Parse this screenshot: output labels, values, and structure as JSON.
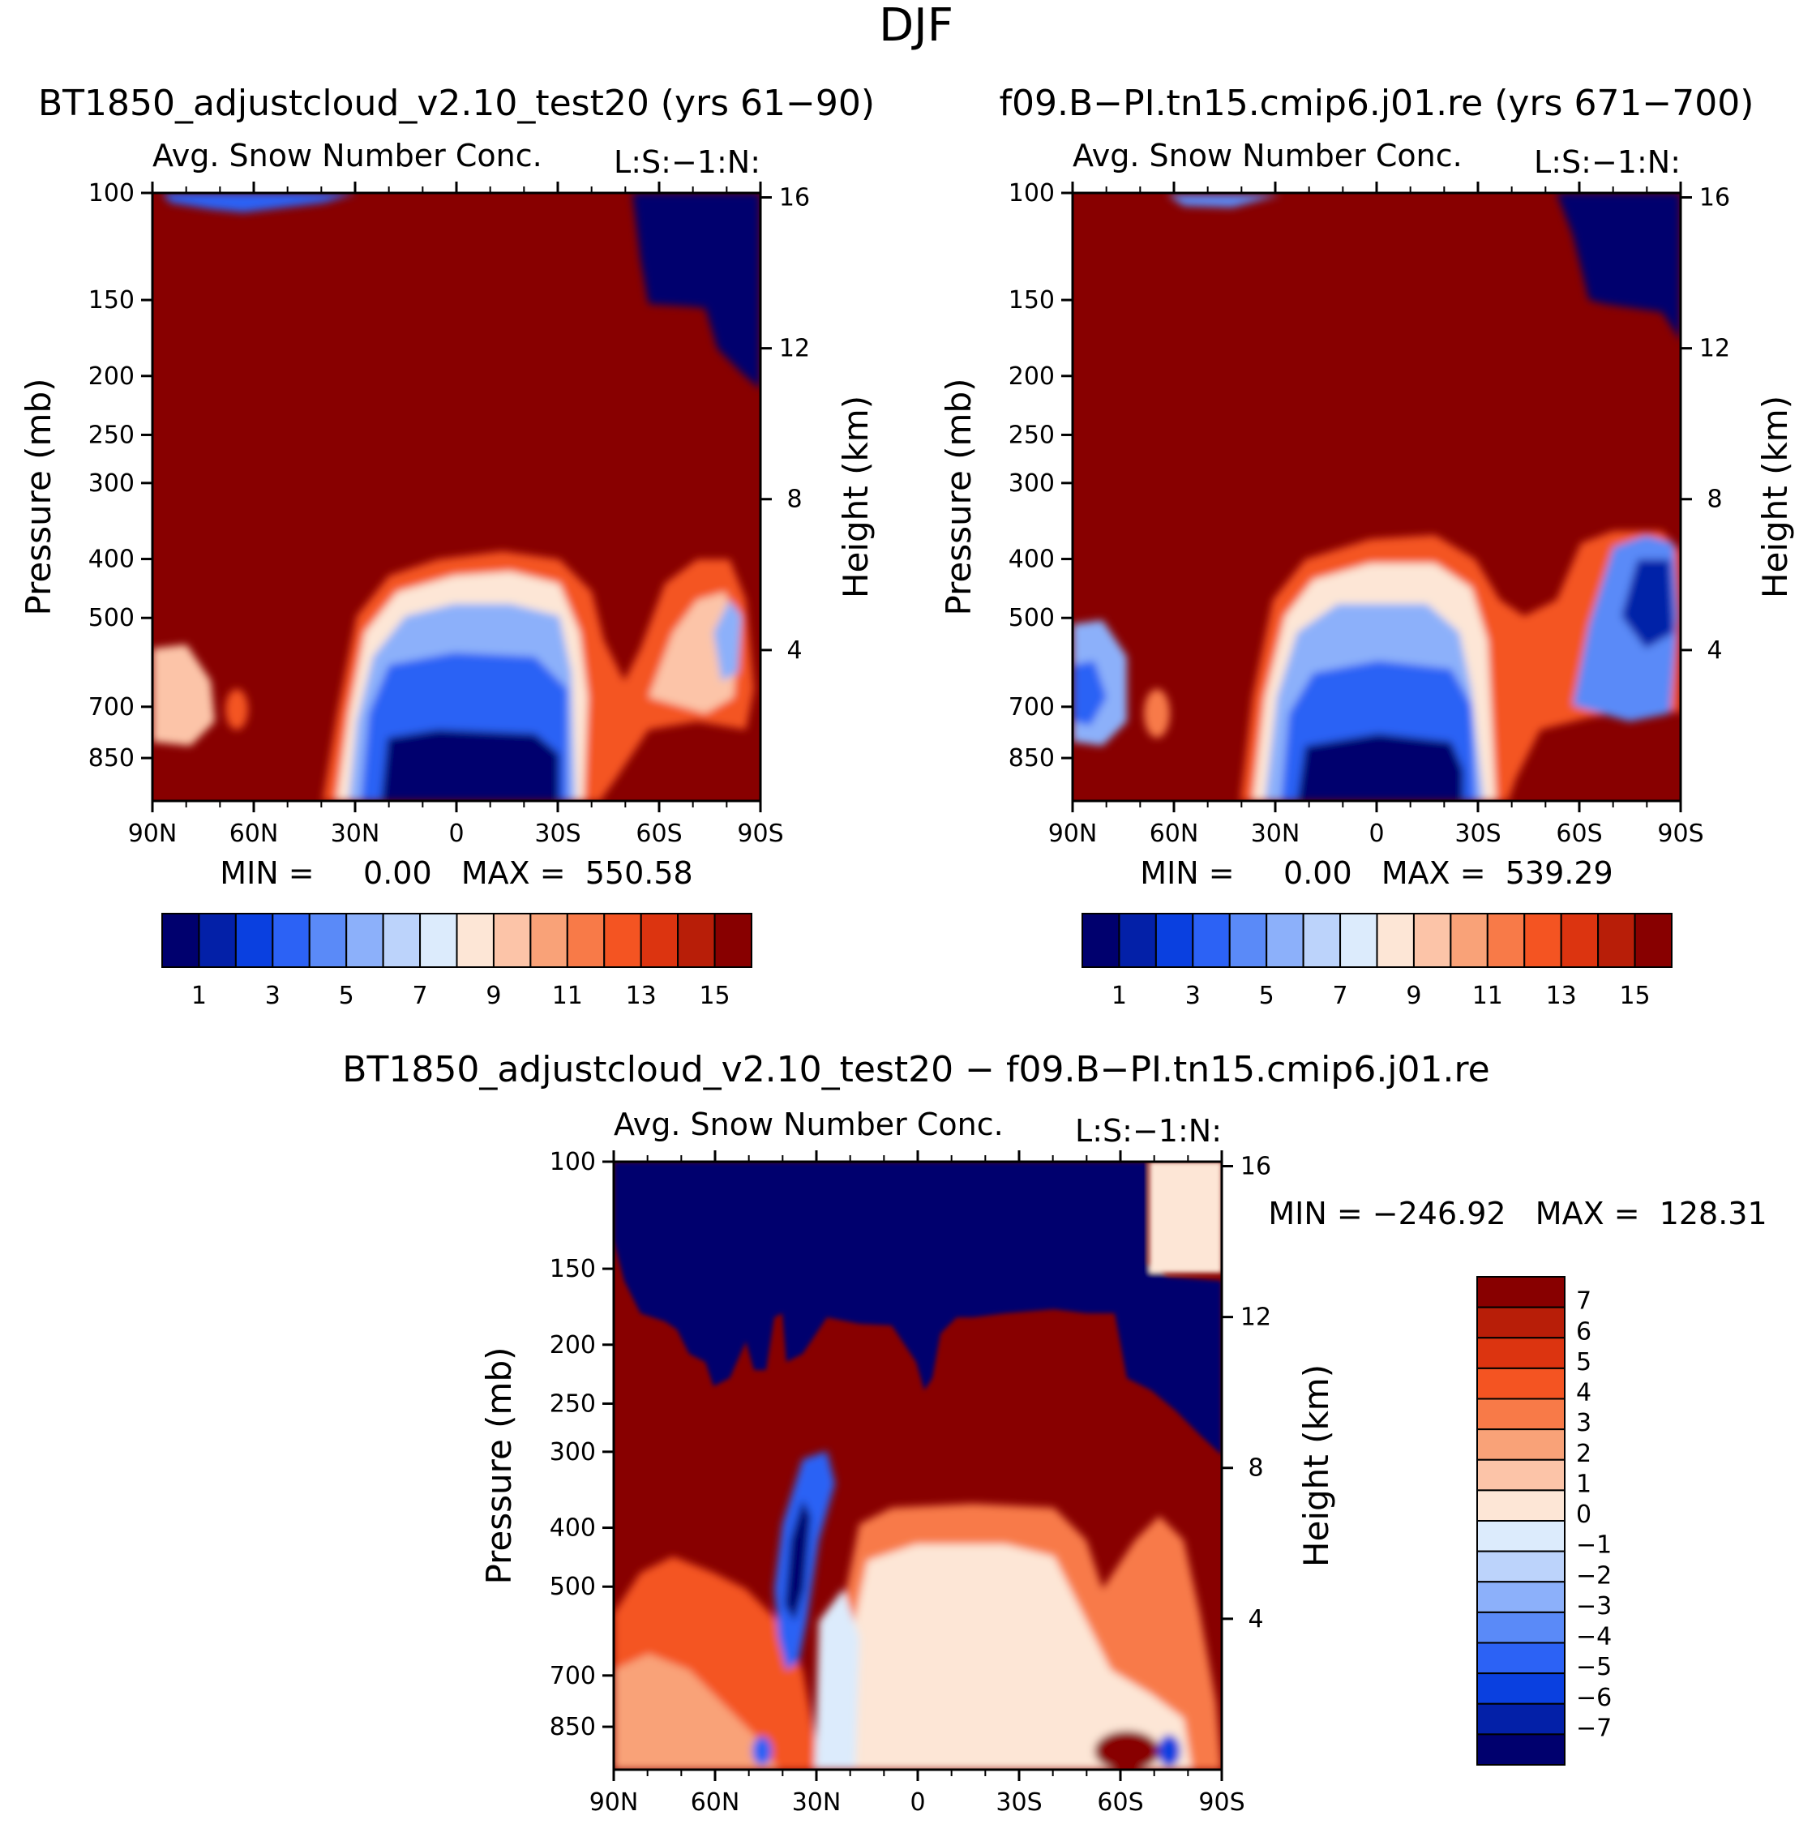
{
  "figure_title": "DJF",
  "chart_data": [
    {
      "type": "heatmap",
      "title": "BT1850_adjustcloud_v2.10_test20 (yrs 61−90)",
      "left_string": "Avg. Snow Number Conc.",
      "right_string": "L:S:−1:N:",
      "xlabel": "",
      "ylabel": "Pressure (mb)",
      "y2label": "Height (km)",
      "x_tick_labels": [
        "90N",
        "60N",
        "30N",
        "0",
        "30S",
        "60S",
        "90S"
      ],
      "x_tick_values": [
        90,
        60,
        30,
        0,
        -30,
        -60,
        -90
      ],
      "y_tick_labels": [
        "100",
        "150",
        "200",
        "250",
        "300",
        "400",
        "500",
        "700",
        "850"
      ],
      "y_tick_values": [
        100,
        150,
        200,
        250,
        300,
        400,
        500,
        700,
        850
      ],
      "y2_tick_labels": [
        "16",
        "12",
        "8",
        "4"
      ],
      "y2_tick_values": [
        16,
        12,
        8,
        4
      ],
      "ylim": [
        100,
        1000
      ],
      "xlim": [
        90,
        -90
      ],
      "stats_text": "MIN =     0.00   MAX =  550.58",
      "min": 0.0,
      "max": 550.58,
      "colorbar_labels": [
        "1",
        "3",
        "5",
        "7",
        "9",
        "11",
        "13",
        "15"
      ],
      "colorbar_colors": [
        "#00006e",
        "#0320a8",
        "#0a40e0",
        "#2c62f5",
        "#5a8af8",
        "#8cb0fa",
        "#bcd3fb",
        "#dcebfc",
        "#fde6d6",
        "#fcc4a8",
        "#f9a278",
        "#f87a48",
        "#f45422",
        "#dc3410",
        "#b81e08",
        "#880000"
      ]
    },
    {
      "type": "heatmap",
      "title": "f09.B−PI.tn15.cmip6.j01.re (yrs 671−700)",
      "left_string": "Avg. Snow Number Conc.",
      "right_string": "L:S:−1:N:",
      "xlabel": "",
      "ylabel": "Pressure (mb)",
      "y2label": "Height (km)",
      "x_tick_labels": [
        "90N",
        "60N",
        "30N",
        "0",
        "30S",
        "60S",
        "90S"
      ],
      "x_tick_values": [
        90,
        60,
        30,
        0,
        -30,
        -60,
        -90
      ],
      "y_tick_labels": [
        "100",
        "150",
        "200",
        "250",
        "300",
        "400",
        "500",
        "700",
        "850"
      ],
      "y_tick_values": [
        100,
        150,
        200,
        250,
        300,
        400,
        500,
        700,
        850
      ],
      "y2_tick_labels": [
        "16",
        "12",
        "8",
        "4"
      ],
      "y2_tick_values": [
        16,
        12,
        8,
        4
      ],
      "ylim": [
        100,
        1000
      ],
      "xlim": [
        90,
        -90
      ],
      "stats_text": "MIN =     0.00   MAX =  539.29",
      "min": 0.0,
      "max": 539.29,
      "colorbar_labels": [
        "1",
        "3",
        "5",
        "7",
        "9",
        "11",
        "13",
        "15"
      ],
      "colorbar_colors": [
        "#00006e",
        "#0320a8",
        "#0a40e0",
        "#2c62f5",
        "#5a8af8",
        "#8cb0fa",
        "#bcd3fb",
        "#dcebfc",
        "#fde6d6",
        "#fcc4a8",
        "#f9a278",
        "#f87a48",
        "#f45422",
        "#dc3410",
        "#b81e08",
        "#880000"
      ]
    },
    {
      "type": "heatmap",
      "title": "BT1850_adjustcloud_v2.10_test20 − f09.B−PI.tn15.cmip6.j01.re",
      "left_string": "Avg. Snow Number Conc.",
      "right_string": "L:S:−1:N:",
      "xlabel": "",
      "ylabel": "Pressure (mb)",
      "y2label": "Height (km)",
      "x_tick_labels": [
        "90N",
        "60N",
        "30N",
        "0",
        "30S",
        "60S",
        "90S"
      ],
      "x_tick_values": [
        90,
        60,
        30,
        0,
        -30,
        -60,
        -90
      ],
      "y_tick_labels": [
        "100",
        "150",
        "200",
        "250",
        "300",
        "400",
        "500",
        "700",
        "850"
      ],
      "y_tick_values": [
        100,
        150,
        200,
        250,
        300,
        400,
        500,
        700,
        850
      ],
      "y2_tick_labels": [
        "16",
        "12",
        "8",
        "4"
      ],
      "y2_tick_values": [
        16,
        12,
        8,
        4
      ],
      "ylim": [
        100,
        1000
      ],
      "xlim": [
        90,
        -90
      ],
      "stats_text": "MIN = −246.92   MAX =  128.31",
      "min": -246.92,
      "max": 128.31,
      "colorbar_labels": [
        "7",
        "6",
        "5",
        "4",
        "3",
        "2",
        "1",
        "0",
        "−1",
        "−2",
        "−3",
        "−4",
        "−5",
        "−6",
        "−7"
      ],
      "colorbar_colors": [
        "#880000",
        "#b81e08",
        "#dc3410",
        "#f45422",
        "#f87a48",
        "#f9a278",
        "#fcc4a8",
        "#fde6d6",
        "#dcebfc",
        "#bcd3fb",
        "#8cb0fa",
        "#5a8af8",
        "#2c62f5",
        "#0a40e0",
        "#0320a8",
        "#00006e"
      ]
    }
  ]
}
